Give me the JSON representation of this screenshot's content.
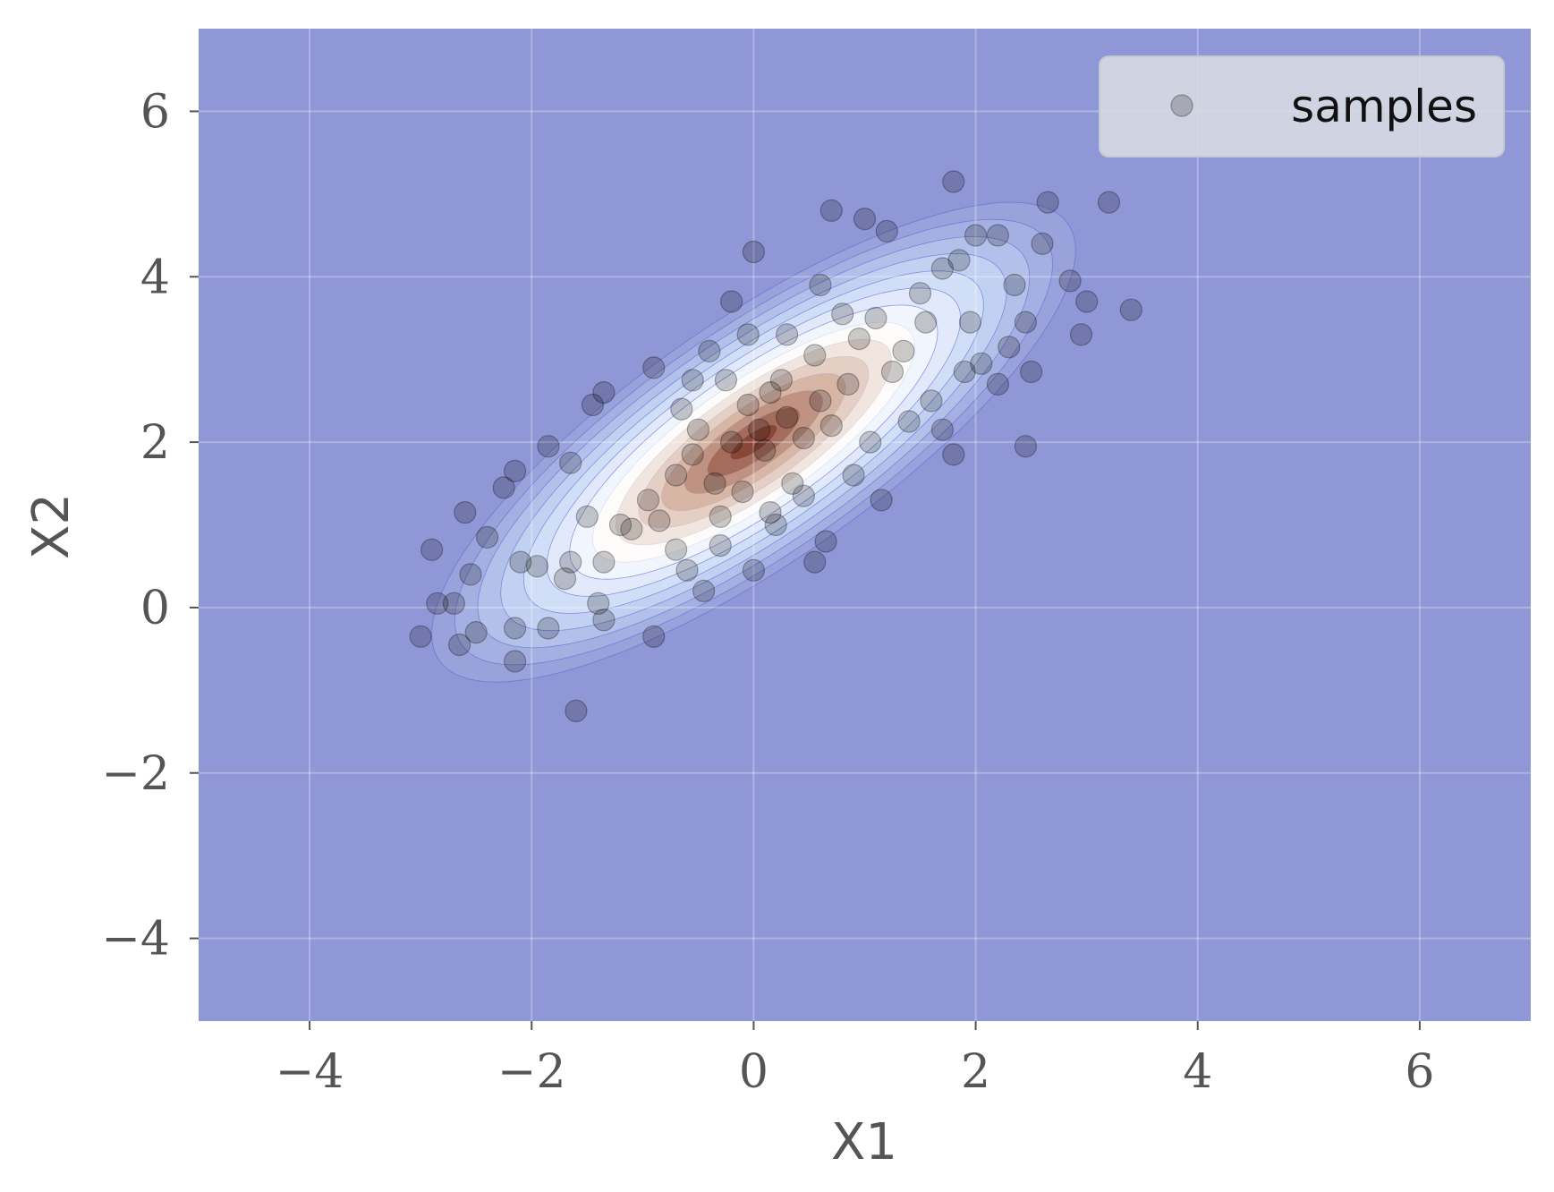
{
  "chart_data": {
    "type": "scatter",
    "title": "",
    "xlabel": "X1",
    "ylabel": "X2",
    "xlim": [
      -5,
      7
    ],
    "ylim": [
      -5,
      7
    ],
    "xticks": [
      -4,
      -2,
      0,
      2,
      4,
      6
    ],
    "yticks": [
      -4,
      -2,
      0,
      2,
      4,
      6
    ],
    "xtick_labels": [
      "−4",
      "−2",
      "0",
      "2",
      "4",
      "6"
    ],
    "ytick_labels": [
      "−4",
      "−2",
      "0",
      "2",
      "4",
      "6"
    ],
    "grid": true,
    "legend": {
      "entries": [
        "samples"
      ],
      "placement": "top-right"
    },
    "background_color": "#8f97d6",
    "point_color": "#000000",
    "contour": {
      "type": "bivariate-normal-density",
      "mean": [
        0,
        2
      ],
      "std": [
        1,
        1
      ],
      "correlation": 0.8,
      "levels": 14,
      "colormap": [
        "#8f97d6",
        "#c8d8f6",
        "#ffffff",
        "#d8b6a6",
        "#8a4636"
      ]
    },
    "series": [
      {
        "name": "samples",
        "marker": "circle",
        "opacity": 0.2,
        "points": [
          [
            1.8,
            5.15
          ],
          [
            0.7,
            4.8
          ],
          [
            1.0,
            4.7
          ],
          [
            2.65,
            4.9
          ],
          [
            3.2,
            4.9
          ],
          [
            1.2,
            4.55
          ],
          [
            2.0,
            4.5
          ],
          [
            2.2,
            4.5
          ],
          [
            0.0,
            4.3
          ],
          [
            2.6,
            4.4
          ],
          [
            1.85,
            4.2
          ],
          [
            1.7,
            4.1
          ],
          [
            2.85,
            3.95
          ],
          [
            2.35,
            3.9
          ],
          [
            0.6,
            3.9
          ],
          [
            3.0,
            3.7
          ],
          [
            3.4,
            3.6
          ],
          [
            2.95,
            3.3
          ],
          [
            -0.2,
            3.7
          ],
          [
            1.5,
            3.8
          ],
          [
            2.45,
            3.45
          ],
          [
            1.1,
            3.5
          ],
          [
            0.3,
            3.3
          ],
          [
            -0.4,
            3.1
          ],
          [
            -0.9,
            2.9
          ],
          [
            2.5,
            2.85
          ],
          [
            2.2,
            2.7
          ],
          [
            1.9,
            2.85
          ],
          [
            -1.35,
            2.6
          ],
          [
            -1.45,
            2.45
          ],
          [
            -0.65,
            2.4
          ],
          [
            0.15,
            2.6
          ],
          [
            1.6,
            2.5
          ],
          [
            2.45,
            1.95
          ],
          [
            1.8,
            1.85
          ],
          [
            -1.85,
            1.95
          ],
          [
            -1.65,
            1.75
          ],
          [
            -2.15,
            1.65
          ],
          [
            -2.25,
            1.45
          ],
          [
            -2.6,
            1.15
          ],
          [
            -2.4,
            0.85
          ],
          [
            -2.9,
            0.7
          ],
          [
            -2.55,
            0.4
          ],
          [
            -2.1,
            0.55
          ],
          [
            -1.7,
            0.35
          ],
          [
            -2.85,
            0.05
          ],
          [
            -2.7,
            0.05
          ],
          [
            -3.0,
            -0.35
          ],
          [
            -2.65,
            -0.45
          ],
          [
            -2.5,
            -0.3
          ],
          [
            -2.15,
            -0.25
          ],
          [
            -1.85,
            -0.25
          ],
          [
            -2.15,
            -0.65
          ],
          [
            -1.6,
            -1.25
          ],
          [
            -1.35,
            -0.15
          ],
          [
            -1.4,
            0.05
          ],
          [
            -0.9,
            -0.35
          ],
          [
            -0.45,
            0.2
          ],
          [
            0.0,
            0.45
          ],
          [
            0.55,
            0.55
          ],
          [
            0.65,
            0.8
          ],
          [
            1.15,
            1.3
          ],
          [
            -0.7,
            0.7
          ],
          [
            -1.2,
            1.0
          ],
          [
            -0.3,
            0.75
          ],
          [
            -0.85,
            1.05
          ],
          [
            -0.1,
            1.4
          ],
          [
            0.35,
            1.5
          ],
          [
            0.9,
            1.6
          ],
          [
            1.05,
            2.0
          ],
          [
            -0.35,
            1.5
          ],
          [
            -0.55,
            1.85
          ],
          [
            -0.2,
            2.0
          ],
          [
            0.05,
            2.15
          ],
          [
            0.3,
            2.3
          ],
          [
            0.6,
            2.5
          ],
          [
            0.85,
            2.7
          ],
          [
            1.25,
            2.85
          ],
          [
            1.35,
            3.1
          ],
          [
            0.1,
            1.9
          ],
          [
            -0.05,
            2.45
          ],
          [
            0.45,
            2.05
          ],
          [
            0.7,
            2.2
          ],
          [
            -0.7,
            1.6
          ],
          [
            -0.95,
            1.3
          ],
          [
            -1.1,
            0.95
          ],
          [
            -1.5,
            1.1
          ],
          [
            -0.5,
            2.15
          ],
          [
            0.25,
            2.75
          ],
          [
            0.55,
            3.05
          ],
          [
            0.95,
            3.25
          ],
          [
            1.55,
            3.45
          ],
          [
            -0.25,
            2.75
          ],
          [
            0.15,
            1.15
          ],
          [
            0.45,
            1.35
          ],
          [
            -0.3,
            1.1
          ],
          [
            -1.35,
            0.55
          ],
          [
            -1.65,
            0.55
          ],
          [
            -1.95,
            0.5
          ],
          [
            -0.6,
            0.45
          ],
          [
            0.2,
            1.0
          ],
          [
            1.4,
            2.25
          ],
          [
            1.7,
            2.15
          ],
          [
            2.05,
            2.95
          ],
          [
            2.3,
            3.15
          ],
          [
            1.95,
            3.45
          ],
          [
            0.8,
            3.55
          ],
          [
            -0.05,
            3.3
          ],
          [
            -0.55,
            2.75
          ]
        ]
      }
    ]
  }
}
